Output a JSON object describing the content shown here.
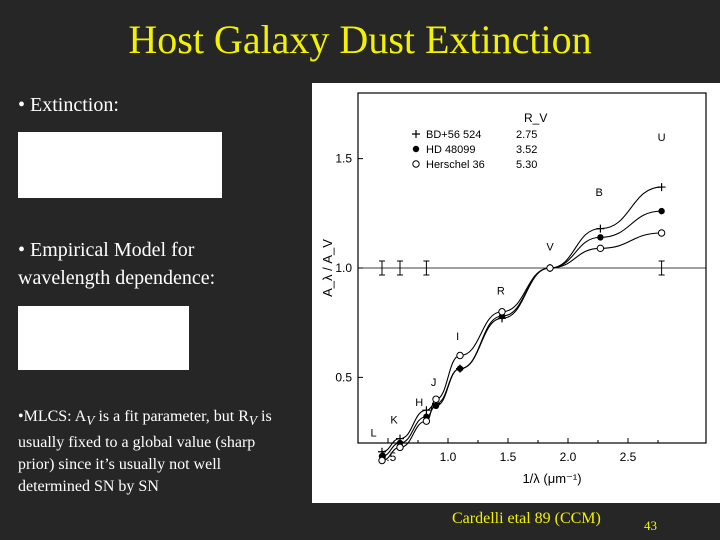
{
  "slide": {
    "title": "Host Galaxy Dust Extinction",
    "bullet_extinction": "• Extinction:",
    "bullet_model": "• Empirical Model for wavelength dependence:",
    "bullet_mlcs": "•MLCS: A",
    "bullet_mlcs_sub_v": "V",
    "bullet_mlcs_mid": " is a fit parameter, but R",
    "bullet_mlcs_sub_v2": "V",
    "bullet_mlcs_end": " is usually fixed to a global value (sharp prior) since it’s usually  not well determined SN by SN",
    "caption": "Cardelli etal 89 (CCM)",
    "page_number": "43"
  },
  "chart_data": {
    "type": "line",
    "xlabel": "1/λ (μm⁻¹)",
    "ylabel": "A_λ / A_V",
    "xlim": [
      0.25,
      3.15
    ],
    "ylim": [
      0.2,
      1.8
    ],
    "x_ticks": [
      "0.5",
      "1.0",
      "1.5",
      "2.0",
      "2.5"
    ],
    "x_tick_values": [
      0.5,
      1.0,
      1.5,
      2.0,
      2.5
    ],
    "y_ticks": [
      "0.5",
      "1.0",
      "1.5"
    ],
    "y_tick_values": [
      0.5,
      1.0,
      1.5
    ],
    "legend_header": "R_V",
    "series": [
      {
        "name": "BD+56 524",
        "rv": "2.75",
        "marker": "plus",
        "x": [
          0.45,
          0.6,
          0.82,
          0.9,
          1.1,
          1.45,
          1.85,
          2.27,
          2.78
        ],
        "y": [
          0.16,
          0.22,
          0.35,
          0.38,
          0.54,
          0.77,
          1.0,
          1.18,
          1.37
        ]
      },
      {
        "name": "HD 48099",
        "rv": "3.52",
        "marker": "filled",
        "x": [
          0.45,
          0.6,
          0.82,
          0.9,
          1.1,
          1.45,
          1.85,
          2.27,
          2.78
        ],
        "y": [
          0.14,
          0.2,
          0.32,
          0.37,
          0.54,
          0.78,
          1.0,
          1.14,
          1.26
        ]
      },
      {
        "name": "Herschel 36",
        "rv": "5.30",
        "marker": "open",
        "x": [
          0.45,
          0.6,
          0.82,
          0.9,
          1.1,
          1.45,
          1.85,
          2.27,
          2.78
        ],
        "y": [
          0.12,
          0.18,
          0.3,
          0.4,
          0.6,
          0.8,
          1.0,
          1.09,
          1.16
        ]
      }
    ],
    "band_labels": [
      {
        "text": "L",
        "x": 0.38,
        "y": 0.23
      },
      {
        "text": "K",
        "x": 0.55,
        "y": 0.29
      },
      {
        "text": "H",
        "x": 0.76,
        "y": 0.37
      },
      {
        "text": "J",
        "x": 0.88,
        "y": 0.46
      },
      {
        "text": "I",
        "x": 1.08,
        "y": 0.67
      },
      {
        "text": "R",
        "x": 1.44,
        "y": 0.88
      },
      {
        "text": "V",
        "x": 1.85,
        "y": 1.08
      },
      {
        "text": "B",
        "x": 2.26,
        "y": 1.33
      },
      {
        "text": "U",
        "x": 2.78,
        "y": 1.58
      }
    ],
    "error_bars_x": [
      0.45,
      0.6,
      0.82,
      2.78
    ]
  }
}
